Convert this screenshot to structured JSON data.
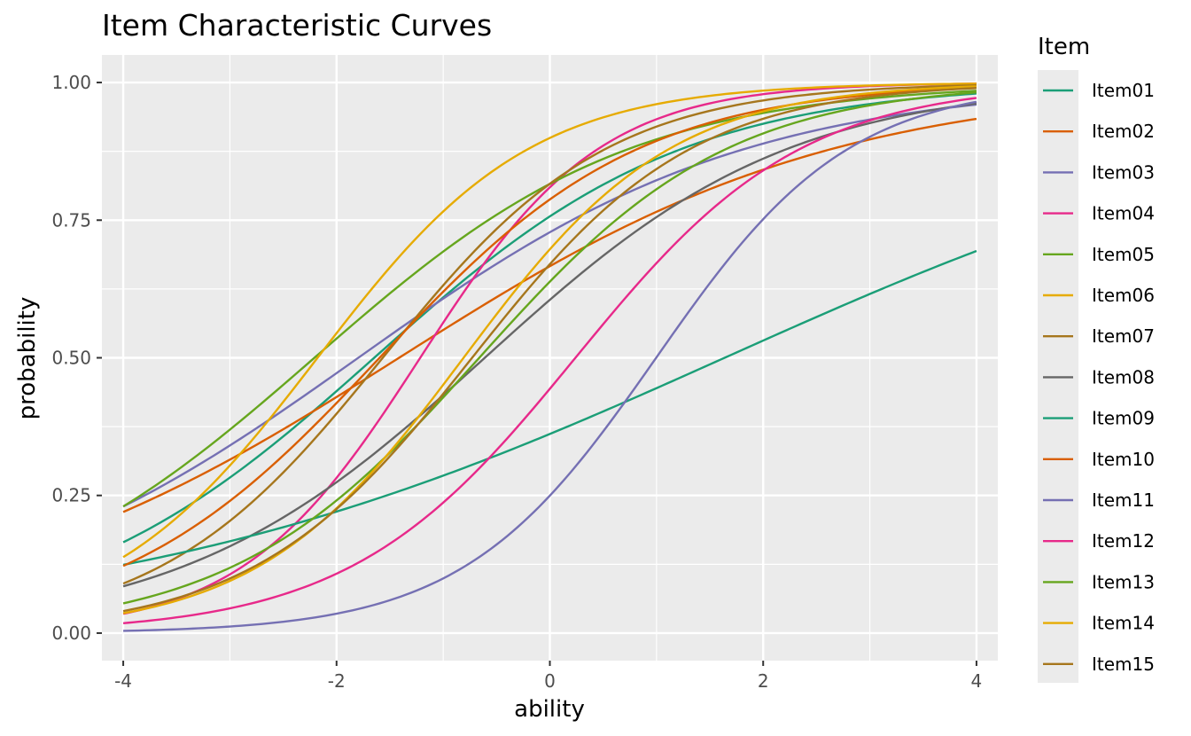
{
  "chart_data": {
    "type": "line",
    "title": "Item Characteristic Curves",
    "xlabel": "ability",
    "ylabel": "probability",
    "xlim": [
      -4.2,
      4.2
    ],
    "ylim": [
      -0.05,
      1.05
    ],
    "x_ticks": [
      -4,
      -2,
      0,
      2,
      4
    ],
    "x_tick_labels": [
      "-4",
      "-2",
      "0",
      "2",
      "4"
    ],
    "y_ticks": [
      0,
      0.25,
      0.5,
      0.75,
      1
    ],
    "y_tick_labels": [
      "0.00",
      "0.25",
      "0.50",
      "0.75",
      "1.00"
    ],
    "grid": true,
    "panel_background": "#ebebeb",
    "legend": {
      "title": "Item",
      "position": "right"
    },
    "x_range": [
      -4,
      4
    ],
    "series": [
      {
        "name": "Item01",
        "color": "#1b9e77",
        "start": 0.165,
        "end": 0.98
      },
      {
        "name": "Item02",
        "color": "#d95f02",
        "start": 0.22,
        "end": 0.934
      },
      {
        "name": "Item03",
        "color": "#7570b3",
        "start": 0.23,
        "end": 0.96
      },
      {
        "name": "Item04",
        "color": "#e7298a",
        "start": 0.035,
        "end": 0.998
      },
      {
        "name": "Item05",
        "color": "#66a61e",
        "start": 0.23,
        "end": 0.985
      },
      {
        "name": "Item06",
        "color": "#e6ab02",
        "start": 0.138,
        "end": 0.998
      },
      {
        "name": "Item07",
        "color": "#a6761d",
        "start": 0.09,
        "end": 0.995
      },
      {
        "name": "Item08",
        "color": "#666666",
        "start": 0.085,
        "end": 0.962
      },
      {
        "name": "Item09",
        "color": "#1b9e77",
        "start": 0.124,
        "end": 0.694
      },
      {
        "name": "Item10",
        "color": "#d95f02",
        "start": 0.122,
        "end": 0.99
      },
      {
        "name": "Item11",
        "color": "#7570b3",
        "start": 0.004,
        "end": 0.965
      },
      {
        "name": "Item12",
        "color": "#e7298a",
        "start": 0.018,
        "end": 0.972
      },
      {
        "name": "Item13",
        "color": "#66a61e",
        "start": 0.054,
        "end": 0.982
      },
      {
        "name": "Item14",
        "color": "#e6ab02",
        "start": 0.036,
        "end": 0.993
      },
      {
        "name": "Item15",
        "color": "#a6761d",
        "start": 0.04,
        "end": 0.99
      }
    ]
  }
}
